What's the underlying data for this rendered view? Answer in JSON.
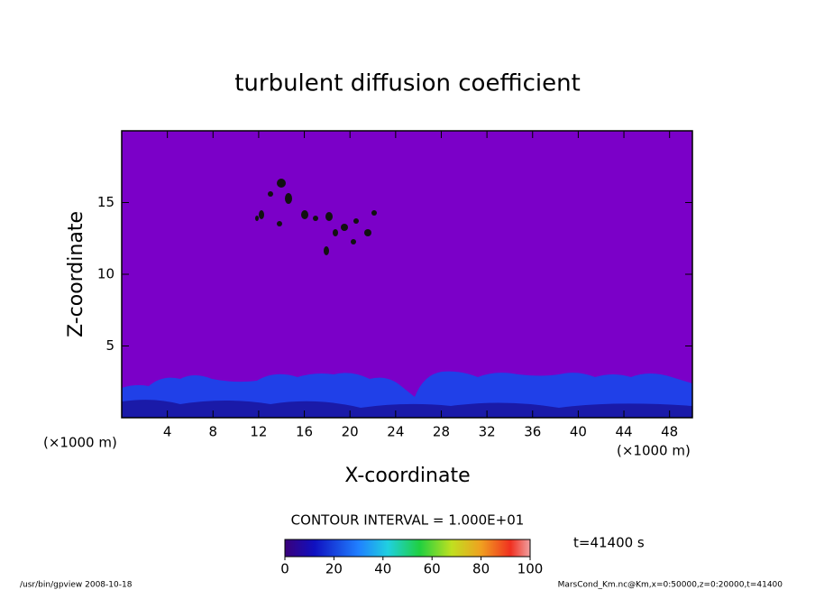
{
  "chart_data": {
    "type": "contour",
    "title": "turbulent diffusion coefficient",
    "x_label": "X-coordinate",
    "y_label": "Z-coordinate",
    "x_unit": "(×1000 m)",
    "xlim": [
      0,
      50
    ],
    "xticks": [
      4,
      8,
      12,
      16,
      20,
      24,
      28,
      32,
      36,
      40,
      44,
      48
    ],
    "ylim": [
      0,
      20
    ],
    "yticks": [
      5,
      10,
      15
    ],
    "contour_interval": "CONTOUR INTERVAL = 1.000E+01",
    "time": "t=41400 s",
    "clim": [
      0,
      100
    ],
    "cticks": [
      0,
      20,
      40,
      60,
      80,
      100
    ],
    "footer_left": "/usr/bin/gpview  2008-10-18",
    "footer_right": "MarsCond_Km.nc@Km,x=0:50000,z=0:20000,t=41400"
  }
}
